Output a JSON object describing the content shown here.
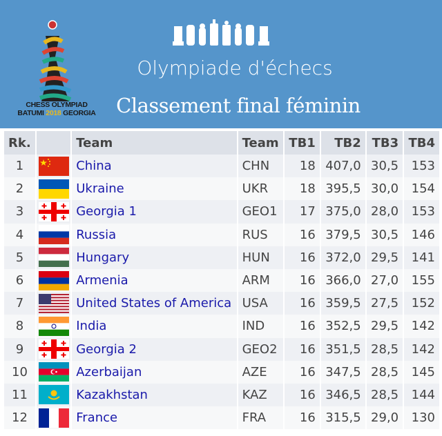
{
  "header": {
    "logo_text_line1": "CHESS OLYMPIAD",
    "logo_text_batumi": "BATUMI",
    "logo_text_year": "2018",
    "logo_text_georgia": "GEORGIA",
    "title": "Olympiade d'échecs",
    "subtitle": "Classement final féminin",
    "color": "#5595cb"
  },
  "table": {
    "columns": [
      "Rk.",
      "",
      "Team",
      "Team",
      "TB1",
      "TB2",
      "TB3",
      "TB4"
    ],
    "rows": [
      {
        "rk": "1",
        "flag": "china-flag",
        "team": "China",
        "code": "CHN",
        "tb1": "18",
        "tb2": "407,0",
        "tb3": "30,5",
        "tb4": "153"
      },
      {
        "rk": "2",
        "flag": "ukraine-flag",
        "team": "Ukraine",
        "code": "UKR",
        "tb1": "18",
        "tb2": "395,5",
        "tb3": "30,0",
        "tb4": "154"
      },
      {
        "rk": "3",
        "flag": "georgia-flag",
        "team": "Georgia 1",
        "code": "GEO1",
        "tb1": "17",
        "tb2": "375,0",
        "tb3": "28,0",
        "tb4": "153"
      },
      {
        "rk": "4",
        "flag": "russia-flag",
        "team": "Russia",
        "code": "RUS",
        "tb1": "16",
        "tb2": "379,5",
        "tb3": "30,5",
        "tb4": "146"
      },
      {
        "rk": "5",
        "flag": "hungary-flag",
        "team": "Hungary",
        "code": "HUN",
        "tb1": "16",
        "tb2": "372,0",
        "tb3": "29,5",
        "tb4": "141"
      },
      {
        "rk": "6",
        "flag": "armenia-flag",
        "team": "Armenia",
        "code": "ARM",
        "tb1": "16",
        "tb2": "366,0",
        "tb3": "27,0",
        "tb4": "155"
      },
      {
        "rk": "7",
        "flag": "usa-flag",
        "team": "United States of America",
        "code": "USA",
        "tb1": "16",
        "tb2": "359,5",
        "tb3": "27,5",
        "tb4": "152"
      },
      {
        "rk": "8",
        "flag": "india-flag",
        "team": "India",
        "code": "IND",
        "tb1": "16",
        "tb2": "352,5",
        "tb3": "29,5",
        "tb4": "142"
      },
      {
        "rk": "9",
        "flag": "georgia-flag",
        "team": "Georgia 2",
        "code": "GEO2",
        "tb1": "16",
        "tb2": "351,5",
        "tb3": "28,5",
        "tb4": "142"
      },
      {
        "rk": "10",
        "flag": "azerbaijan-flag",
        "team": "Azerbaijan",
        "code": "AZE",
        "tb1": "16",
        "tb2": "347,5",
        "tb3": "28,5",
        "tb4": "145"
      },
      {
        "rk": "11",
        "flag": "kazakhstan-flag",
        "team": "Kazakhstan",
        "code": "KAZ",
        "tb1": "16",
        "tb2": "346,5",
        "tb3": "28,5",
        "tb4": "144"
      },
      {
        "rk": "12",
        "flag": "france-flag",
        "team": "France",
        "code": "FRA",
        "tb1": "16",
        "tb2": "315,5",
        "tb3": "29,0",
        "tb4": "130"
      }
    ]
  }
}
